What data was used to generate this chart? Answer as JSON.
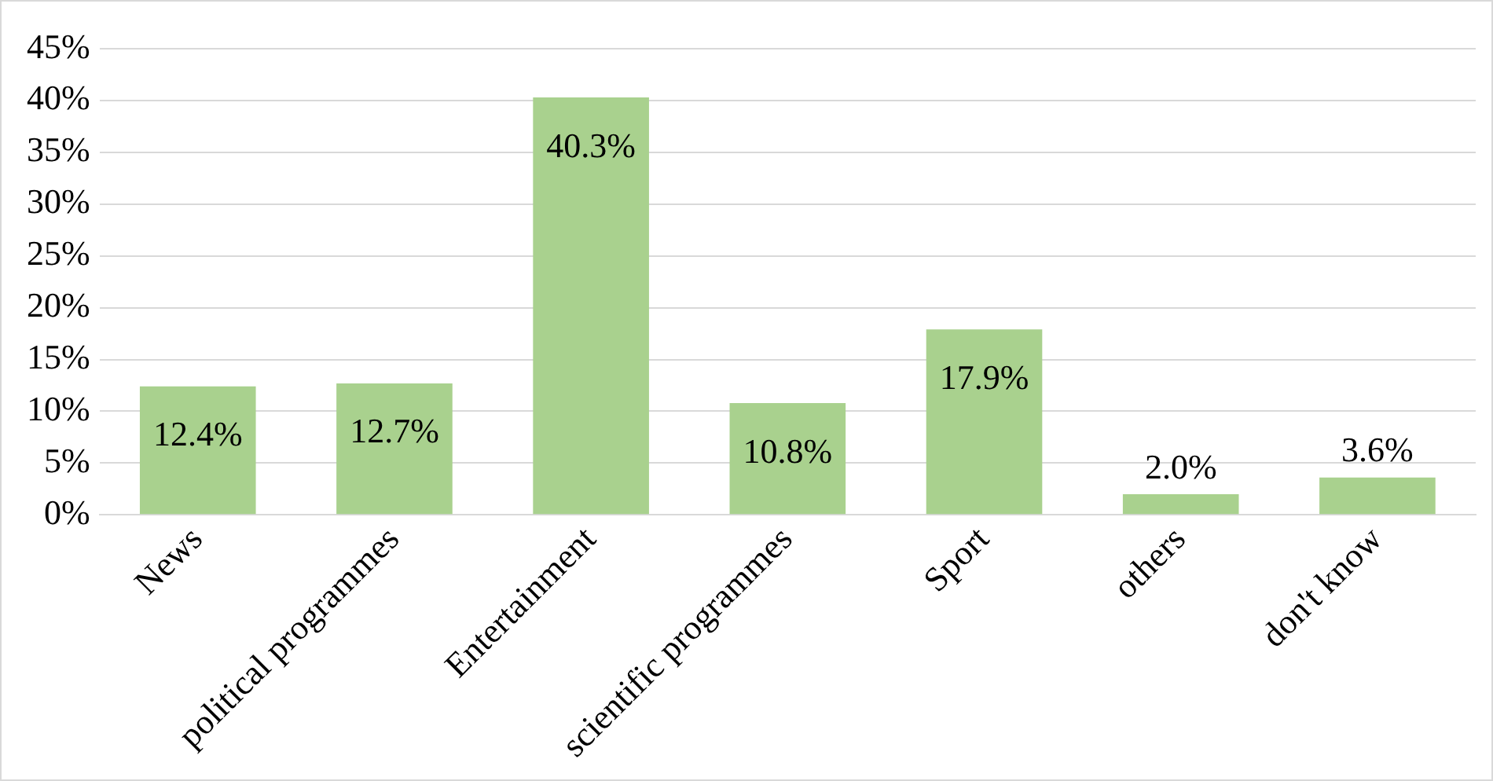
{
  "chart_data": {
    "type": "bar",
    "categories": [
      "News",
      "political programmes",
      "Entertainment",
      "scientific programmes",
      "Sport",
      "others",
      "don't know"
    ],
    "values": [
      12.4,
      12.7,
      40.3,
      10.8,
      17.9,
      2.0,
      3.6
    ],
    "value_labels": [
      "12.4%",
      "12.7%",
      "40.3%",
      "10.8%",
      "17.9%",
      "2.0%",
      "3.6%"
    ],
    "color": "#a9d18e",
    "ylim": [
      0,
      45
    ],
    "yticks": [
      {
        "value": 0,
        "label": "0%"
      },
      {
        "value": 5,
        "label": "5%"
      },
      {
        "value": 10,
        "label": "10%"
      },
      {
        "value": 15,
        "label": "15%"
      },
      {
        "value": 20,
        "label": "20%"
      },
      {
        "value": 25,
        "label": "25%"
      },
      {
        "value": 30,
        "label": "30%"
      },
      {
        "value": 35,
        "label": "35%"
      },
      {
        "value": 40,
        "label": "40%"
      },
      {
        "value": 45,
        "label": "45%"
      }
    ],
    "grid": "y",
    "legend": false
  }
}
